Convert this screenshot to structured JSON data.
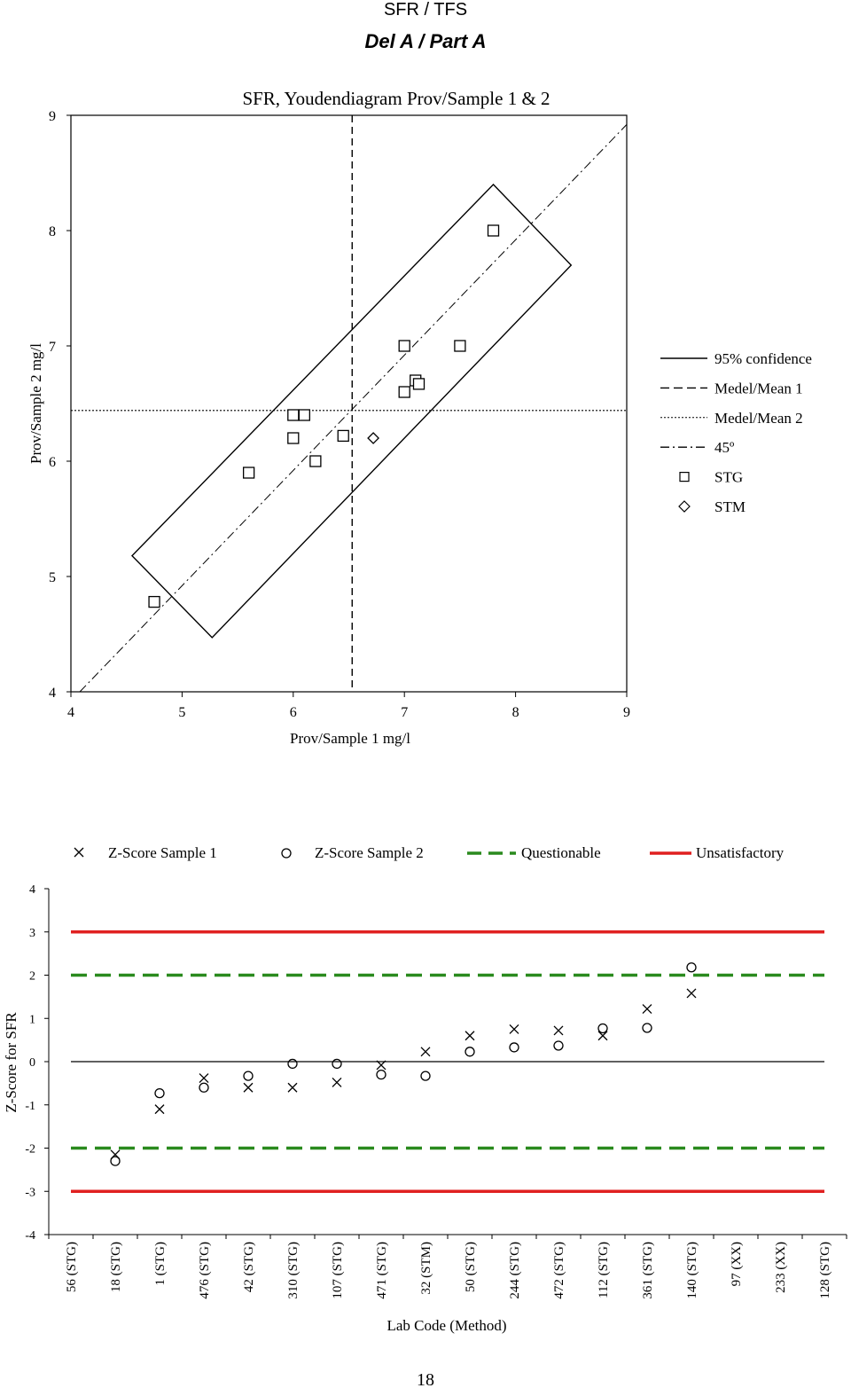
{
  "header": {
    "line1": "SFR / TFS",
    "line2": "Del A / Part A"
  },
  "page_number": "18",
  "chart_data": [
    {
      "type": "scatter",
      "title": "SFR, Youdendiagram Prov/Sample 1 & 2",
      "xlabel": "Prov/Sample  1 mg/l",
      "ylabel": "Prov/Sample  2  mg/l",
      "xlim": [
        4,
        9
      ],
      "ylim": [
        4,
        9
      ],
      "xticks": [
        "4",
        "5",
        "6",
        "7",
        "8",
        "9"
      ],
      "yticks": [
        "4",
        "5",
        "6",
        "7",
        "8",
        "9"
      ],
      "mean1": 6.53,
      "mean2": 6.44,
      "confidence_polygon": [
        [
          7.8,
          8.4
        ],
        [
          8.5,
          7.7
        ],
        [
          5.27,
          4.47
        ],
        [
          4.55,
          5.18
        ]
      ],
      "legend": {
        "position": "right",
        "entries": [
          {
            "label": "95% confidence",
            "style": "solid"
          },
          {
            "label": "Medel/Mean 1",
            "style": "dashed"
          },
          {
            "label": "Medel/Mean 2",
            "style": "dotted"
          },
          {
            "label": "45º",
            "style": "dashdot"
          },
          {
            "label": "STG",
            "style": "square"
          },
          {
            "label": "STM",
            "style": "diamond"
          }
        ]
      },
      "series": [
        {
          "name": "STG",
          "marker": "square",
          "points": [
            [
              4.75,
              4.78
            ],
            [
              5.6,
              5.9
            ],
            [
              6.0,
              6.4
            ],
            [
              6.1,
              6.4
            ],
            [
              6.0,
              6.2
            ],
            [
              6.2,
              6.0
            ],
            [
              6.45,
              6.22
            ],
            [
              7.0,
              7.0
            ],
            [
              7.0,
              6.6
            ],
            [
              7.1,
              6.7
            ],
            [
              7.13,
              6.67
            ],
            [
              7.5,
              7.0
            ],
            [
              7.8,
              8.0
            ]
          ]
        },
        {
          "name": "STM",
          "marker": "diamond",
          "points": [
            [
              6.72,
              6.2
            ]
          ]
        }
      ]
    },
    {
      "type": "scatter",
      "ylabel": "Z-Score for SFR",
      "xlabel": "Lab Code (Method)",
      "ylim": [
        -4,
        4
      ],
      "yticks": [
        "4",
        "3",
        "2",
        "1",
        "0",
        "-1",
        "-2",
        "-3",
        "-4"
      ],
      "categories": [
        "56 (STG)",
        "18 (STG)",
        "1 (STG)",
        "476 (STG)",
        "42 (STG)",
        "310 (STG)",
        "107 (STG)",
        "471 (STG)",
        "32 (STM)",
        "50 (STG)",
        "244 (STG)",
        "472 (STG)",
        "112 (STG)",
        "361 (STG)",
        "140 (STG)",
        "97 (XX)",
        "233 (XX)",
        "128 (STG)"
      ],
      "questionable": [
        2,
        -2
      ],
      "unsatisfactory": [
        3,
        -3
      ],
      "legend": {
        "position": "top",
        "entries": [
          {
            "label": "Z-Score Sample 1",
            "marker": "x"
          },
          {
            "label": "Z-Score Sample 2",
            "marker": "circle"
          },
          {
            "label": "Questionable",
            "color": "#2a8a1e"
          },
          {
            "label": "Unsatisfactory",
            "color": "#e02020"
          }
        ]
      },
      "series": [
        {
          "name": "Z-Score Sample 1",
          "marker": "x",
          "values": [
            null,
            -2.15,
            -1.1,
            -0.38,
            -0.6,
            -0.6,
            -0.48,
            -0.08,
            0.23,
            0.6,
            0.75,
            0.72,
            0.6,
            1.22,
            1.58,
            null,
            null,
            null
          ]
        },
        {
          "name": "Z-Score Sample 2",
          "marker": "circle",
          "values": [
            null,
            -2.3,
            -0.73,
            -0.6,
            -0.33,
            -0.05,
            -0.05,
            -0.3,
            -0.33,
            0.23,
            0.33,
            0.37,
            0.77,
            0.78,
            2.18,
            null,
            null,
            null
          ]
        }
      ],
      "colors": {
        "questionable": "#2a8a1e",
        "unsatisfactory": "#e02020"
      }
    }
  ]
}
